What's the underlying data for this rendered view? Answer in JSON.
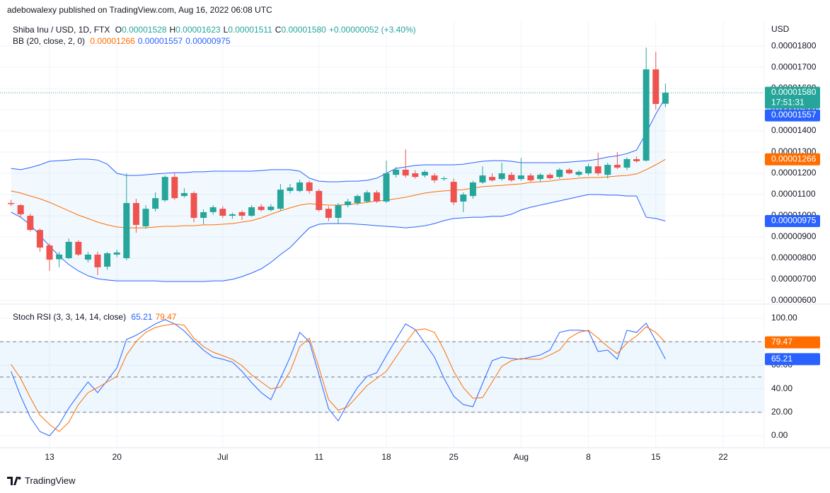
{
  "header": {
    "text": "adebowalexy published on TradingView.com, Aug 16, 2022 06:08 UTC"
  },
  "footer": {
    "logo": "TradingView"
  },
  "chart_data": [
    {
      "type": "candlestick",
      "title": "Shiba Inu / USD, 1D, FTX",
      "ohlc_legend": [
        {
          "key": "O",
          "value": "0.00001528"
        },
        {
          "key": "H",
          "value": "0.00001623"
        },
        {
          "key": "L",
          "value": "0.00001511"
        },
        {
          "key": "C",
          "value": "0.00001580"
        }
      ],
      "change": "+0.00000052 (+3.40%)",
      "currency": "USD",
      "countdown": "17:51:31",
      "up_color": "#26a69a",
      "down_color": "#ef5350",
      "x": [
        "Jun 9",
        "Jun 10",
        "Jun 11",
        "Jun 12",
        "Jun 13",
        "Jun 14",
        "Jun 15",
        "Jun 16",
        "Jun 17",
        "Jun 18",
        "Jun 19",
        "Jun 20",
        "Jun 21",
        "Jun 22",
        "Jun 23",
        "Jun 24",
        "Jun 25",
        "Jun 26",
        "Jun 27",
        "Jun 28",
        "Jun 29",
        "Jun 30",
        "Jul 1",
        "Jul 2",
        "Jul 3",
        "Jul 4",
        "Jul 5",
        "Jul 6",
        "Jul 7",
        "Jul 8",
        "Jul 9",
        "Jul 10",
        "Jul 11",
        "Jul 12",
        "Jul 13",
        "Jul 14",
        "Jul 15",
        "Jul 16",
        "Jul 17",
        "Jul 18",
        "Jul 19",
        "Jul 20",
        "Jul 21",
        "Jul 22",
        "Jul 23",
        "Jul 24",
        "Jul 25",
        "Jul 26",
        "Jul 27",
        "Jul 28",
        "Jul 29",
        "Jul 30",
        "Jul 31",
        "Aug 1",
        "Aug 2",
        "Aug 3",
        "Aug 4",
        "Aug 5",
        "Aug 6",
        "Aug 7",
        "Aug 8",
        "Aug 9",
        "Aug 10",
        "Aug 11",
        "Aug 12",
        "Aug 13",
        "Aug 14",
        "Aug 15",
        "Aug 16"
      ],
      "open": [
        1.06e-05,
        1.05e-05,
        1e-05,
        9.33e-06,
        8.6e-06,
        7.95e-06,
        8e-06,
        8.77e-06,
        7.93e-06,
        8.17e-06,
        7.6e-06,
        8.17e-06,
        8e-06,
        1.06e-05,
        9.5e-06,
        1.033e-05,
        1.073e-05,
        1.183e-05,
        1.093e-05,
        1.107e-05,
        9.9e-06,
        1.017e-05,
        1.033e-05,
        1e-05,
        1.017e-05,
        1e-05,
        1.043e-05,
        1.027e-05,
        1.033e-05,
        1.117e-05,
        1.117e-05,
        1.157e-05,
        1.117e-05,
        1.033e-05,
        9.9e-06,
        1.05e-05,
        1.06e-05,
        1.067e-05,
        1.11e-05,
        1.067e-05,
        1.193e-05,
        1.217e-05,
        1.2e-05,
        1.19e-05,
        1.19e-05,
        1.173e-05,
        1.16e-05,
        1.067e-05,
        1.093e-05,
        1.157e-05,
        1.183e-05,
        1.173e-05,
        1.193e-05,
        1.173e-05,
        1.19e-05,
        1.173e-05,
        1.193e-05,
        1.183e-05,
        1.217e-05,
        1.193e-05,
        1.2e-05,
        1.233e-05,
        1.193e-05,
        1.24e-05,
        1.227e-05,
        1.267e-05,
        1.26e-05,
        1.69e-05,
        1.528e-05
      ],
      "high": [
        1.075e-05,
        1.055e-05,
        1.01e-05,
        9.4e-06,
        8.7e-06,
        8.3e-06,
        8.93e-06,
        8.85e-06,
        8.3e-06,
        8.3e-06,
        8.3e-06,
        8.4e-06,
        1.2e-05,
        1.08e-05,
        1.05e-05,
        1.11e-05,
        1.19e-05,
        1.2e-05,
        1.13e-05,
        1.115e-05,
        1.03e-05,
        1.05e-05,
        1.045e-05,
        1.015e-05,
        1.025e-05,
        1.05e-05,
        1.055e-05,
        1.055e-05,
        1.15e-05,
        1.15e-05,
        1.17e-05,
        1.165e-05,
        1.125e-05,
        1.045e-05,
        1.06e-05,
        1.08e-05,
        1.1e-05,
        1.12e-05,
        1.12e-05,
        1.26e-05,
        1.23e-05,
        1.313e-05,
        1.215e-05,
        1.215e-05,
        1.2e-05,
        1.185e-05,
        1.175e-05,
        1.11e-05,
        1.165e-05,
        1.233e-05,
        1.2e-05,
        1.25e-05,
        1.205e-05,
        1.273e-05,
        1.2e-05,
        1.2e-05,
        1.2e-05,
        1.225e-05,
        1.225e-05,
        1.215e-05,
        1.245e-05,
        1.297e-05,
        1.25e-05,
        1.3e-05,
        1.275e-05,
        1.28e-05,
        1.793e-05,
        1.773e-05,
        1.623e-05
      ],
      "low": [
        1.045e-05,
        9.9e-06,
        9.25e-06,
        8.3e-06,
        7.4e-06,
        7.57e-06,
        7.95e-06,
        8.1e-06,
        7.8e-06,
        7.2e-06,
        7.45e-06,
        8.05e-06,
        7.9e-06,
        9.2e-06,
        9.4e-06,
        1.02e-05,
        1.065e-05,
        1.075e-05,
        1.085e-05,
        9.7e-06,
        9.6e-06,
        1.005e-05,
        9.9e-06,
        9.85e-06,
        9.8e-06,
        9.95e-06,
        1.02e-05,
        1.02e-05,
        1.025e-05,
        1.105e-05,
        1.11e-05,
        1.105e-05,
        1.02e-05,
        9.75e-06,
        9.6e-06,
        1.04e-05,
        1.05e-05,
        1.06e-05,
        1.06e-05,
        1.06e-05,
        1.18e-05,
        1.18e-05,
        1.175e-05,
        1.18e-05,
        1.155e-05,
        1.165e-05,
        1.05e-05,
        1.017e-05,
        1.08e-05,
        1.15e-05,
        1.16e-05,
        1.165e-05,
        1.16e-05,
        1.165e-05,
        1.16e-05,
        1.16e-05,
        1.17e-05,
        1.175e-05,
        1.195e-05,
        1.185e-05,
        1.19e-05,
        1.19e-05,
        1.175e-05,
        1.22e-05,
        1.215e-05,
        1.25e-05,
        1.255e-05,
        1.5e-05,
        1.511e-05
      ],
      "close": [
        1.055e-05,
        1.007e-05,
        9.33e-06,
        8.5e-06,
        7.93e-06,
        8.17e-06,
        8.77e-06,
        8.17e-06,
        8.17e-06,
        7.57e-06,
        8.23e-06,
        8.27e-06,
        1.06e-05,
        9.57e-06,
        1.033e-05,
        1.083e-05,
        1.183e-05,
        1.083e-05,
        1.107e-05,
        9.9e-06,
        1.017e-05,
        1.04e-05,
        1e-05,
        1.007e-05,
        1e-05,
        1.04e-05,
        1.027e-05,
        1.043e-05,
        1.123e-05,
        1.133e-05,
        1.157e-05,
        1.117e-05,
        1.027e-05,
        9.9e-06,
        1.05e-05,
        1.067e-05,
        1.093e-05,
        1.11e-05,
        1.067e-05,
        1.2e-05,
        1.217e-05,
        1.19e-05,
        1.183e-05,
        1.207e-05,
        1.167e-05,
        1.177e-05,
        1.063e-05,
        1.1e-05,
        1.157e-05,
        1.19e-05,
        1.167e-05,
        1.2e-05,
        1.167e-05,
        1.19e-05,
        1.167e-05,
        1.193e-05,
        1.177e-05,
        1.217e-05,
        1.2e-05,
        1.207e-05,
        1.233e-05,
        1.2e-05,
        1.24e-05,
        1.227e-05,
        1.267e-05,
        1.257e-05,
        1.69e-05,
        1.527e-05,
        1.58e-05
      ],
      "bb": {
        "label": "BB (20, close, 2, 0)",
        "fill": "rgba(33,150,243,0.06)",
        "series": [
          {
            "color": "#ff6d00",
            "last_label": "0.00001266",
            "values": [
              1.117e-05,
              1.107e-05,
              1.093e-05,
              1.08e-05,
              1.063e-05,
              1.043e-05,
              1.023e-05,
              1.003e-05,
              9.87e-06,
              9.7e-06,
              9.57e-06,
              9.47e-06,
              9.43e-06,
              9.43e-06,
              9.43e-06,
              9.47e-06,
              9.5e-06,
              9.5e-06,
              9.53e-06,
              9.53e-06,
              9.57e-06,
              9.57e-06,
              9.6e-06,
              9.63e-06,
              9.7e-06,
              9.77e-06,
              9.9e-06,
              1.007e-05,
              1.023e-05,
              1.037e-05,
              1.05e-05,
              1.057e-05,
              1.053e-05,
              1.05e-05,
              1.05e-05,
              1.053e-05,
              1.057e-05,
              1.063e-05,
              1.07e-05,
              1.073e-05,
              1.08e-05,
              1.087e-05,
              1.097e-05,
              1.107e-05,
              1.113e-05,
              1.117e-05,
              1.12e-05,
              1.123e-05,
              1.13e-05,
              1.137e-05,
              1.14e-05,
              1.143e-05,
              1.147e-05,
              1.15e-05,
              1.157e-05,
              1.16e-05,
              1.163e-05,
              1.17e-05,
              1.173e-05,
              1.177e-05,
              1.18e-05,
              1.18e-05,
              1.183e-05,
              1.187e-05,
              1.19e-05,
              1.197e-05,
              1.217e-05,
              1.24e-05,
              1.266e-05
            ]
          },
          {
            "color": "#2962ff",
            "last_label": "0.00001557",
            "values": [
              1.223e-05,
              1.217e-05,
              1.227e-05,
              1.24e-05,
              1.257e-05,
              1.26e-05,
              1.263e-05,
              1.267e-05,
              1.267e-05,
              1.263e-05,
              1.243e-05,
              1.2e-05,
              1.19e-05,
              1.19e-05,
              1.193e-05,
              1.197e-05,
              1.2e-05,
              1.203e-05,
              1.203e-05,
              1.207e-05,
              1.207e-05,
              1.21e-05,
              1.21e-05,
              1.21e-05,
              1.21e-05,
              1.21e-05,
              1.213e-05,
              1.217e-05,
              1.217e-05,
              1.217e-05,
              1.21e-05,
              1.177e-05,
              1.163e-05,
              1.16e-05,
              1.16e-05,
              1.163e-05,
              1.163e-05,
              1.167e-05,
              1.177e-05,
              1.2e-05,
              1.223e-05,
              1.23e-05,
              1.237e-05,
              1.24e-05,
              1.24e-05,
              1.24e-05,
              1.24e-05,
              1.243e-05,
              1.25e-05,
              1.257e-05,
              1.26e-05,
              1.26e-05,
              1.257e-05,
              1.25e-05,
              1.25e-05,
              1.25e-05,
              1.25e-05,
              1.25e-05,
              1.253e-05,
              1.257e-05,
              1.26e-05,
              1.267e-05,
              1.277e-05,
              1.283e-05,
              1.293e-05,
              1.31e-05,
              1.39e-05,
              1.48e-05,
              1.557e-05
            ]
          },
          {
            "color": "#2962ff",
            "last_label": "0.00000975",
            "values": [
              1.017e-05,
              9.93e-06,
              9.57e-06,
              9.07e-06,
              8.57e-06,
              8.1e-06,
              7.7e-06,
              7.4e-06,
              7.17e-06,
              7.03e-06,
              6.97e-06,
              6.93e-06,
              6.93e-06,
              6.93e-06,
              6.93e-06,
              6.93e-06,
              6.9e-06,
              6.9e-06,
              6.9e-06,
              6.9e-06,
              6.9e-06,
              6.93e-06,
              6.93e-06,
              7e-06,
              7.13e-06,
              7.3e-06,
              7.5e-06,
              7.8e-06,
              8.17e-06,
              8.5e-06,
              8.97e-06,
              9.43e-06,
              9.6e-06,
              9.63e-06,
              9.63e-06,
              9.63e-06,
              9.6e-06,
              9.57e-06,
              9.53e-06,
              9.5e-06,
              9.47e-06,
              9.43e-06,
              9.47e-06,
              9.53e-06,
              9.63e-06,
              9.77e-06,
              9.87e-06,
              9.9e-06,
              9.93e-06,
              9.93e-06,
              9.97e-06,
              9.97e-06,
              1.007e-05,
              1.027e-05,
              1.04e-05,
              1.05e-05,
              1.06e-05,
              1.07e-05,
              1.08e-05,
              1.09e-05,
              1.1e-05,
              1.1e-05,
              1.097e-05,
              1.097e-05,
              1.093e-05,
              1.093e-05,
              9.93e-06,
              9.87e-06,
              9.75e-06
            ]
          }
        ]
      },
      "ylim": [
        5.9e-06,
        1.917e-05
      ],
      "yticks": [
        {
          "value": 6e-06,
          "label": "0.00000600"
        },
        {
          "value": 7e-06,
          "label": "0.00000700"
        },
        {
          "value": 8e-06,
          "label": "0.00000800"
        },
        {
          "value": 9e-06,
          "label": "0.00000900"
        },
        {
          "value": 1e-05,
          "label": "0.00001000"
        },
        {
          "value": 1.1e-05,
          "label": "0.00001100"
        },
        {
          "value": 1.2e-05,
          "label": "0.00001200"
        },
        {
          "value": 1.3e-05,
          "label": "0.00001300"
        },
        {
          "value": 1.4e-05,
          "label": "0.00001400"
        },
        {
          "value": 1.5e-05,
          "label": "0.00001500"
        },
        {
          "value": 1.6e-05,
          "label": "0.00001600"
        },
        {
          "value": 1.7e-05,
          "label": "0.00001700"
        },
        {
          "value": 1.8e-05,
          "label": "0.00001800"
        }
      ],
      "xticks": [
        {
          "value": "Jun 13",
          "label": "13"
        },
        {
          "value": "Jun 20",
          "label": "20"
        },
        {
          "value": "Jul 1",
          "label": "Jul"
        },
        {
          "value": "Jul 11",
          "label": "11"
        },
        {
          "value": "Jul 18",
          "label": "18"
        },
        {
          "value": "Jul 25",
          "label": "25"
        },
        {
          "value": "Aug 1",
          "label": "Aug"
        },
        {
          "value": "Aug 8",
          "label": "8"
        },
        {
          "value": "Aug 15",
          "label": "15"
        },
        {
          "value": "Aug 22",
          "label": "22"
        }
      ],
      "grid": true
    },
    {
      "type": "line",
      "title": "Stoch RSI (3, 3, 14, 14, close)",
      "series": [
        {
          "color": "#2962ff",
          "values": [
            54.8,
            33.7,
            15.7,
            3.6,
            0,
            9.6,
            23.5,
            34.9,
            45.8,
            36.7,
            47.0,
            57.8,
            81.9,
            85.5,
            90.4,
            95.2,
            98.8,
            95.2,
            89.2,
            80.7,
            72.9,
            66.9,
            65.1,
            62.7,
            54.8,
            45.2,
            36.7,
            30.7,
            48.8,
            66.9,
            88.0,
            80.1,
            51.8,
            22.9,
            12.7,
            27.7,
            41.0,
            50.6,
            53.6,
            68.1,
            81.9,
            95.2,
            90.4,
            78.9,
            66.9,
            48.8,
            33.7,
            26.5,
            24.7,
            44.6,
            63.9,
            66.9,
            65.7,
            65.1,
            66.9,
            68.7,
            72.9,
            88.0,
            89.8,
            89.8,
            89.2,
            71.7,
            72.9,
            65.1,
            89.8,
            88.0,
            95.8,
            80.7,
            65.21
          ]
        },
        {
          "color": "#ff6d00",
          "values": [
            60.8,
            48.8,
            32.5,
            17.5,
            9.6,
            3.6,
            11.4,
            26.5,
            36.7,
            41.0,
            45.8,
            50.6,
            68.7,
            80.1,
            88.0,
            92.2,
            94.0,
            95.2,
            94.0,
            83.1,
            75.9,
            71.1,
            68.1,
            65.1,
            59.6,
            51.8,
            45.8,
            39.8,
            41.6,
            54.8,
            75.9,
            83.1,
            57.8,
            30.7,
            21.7,
            24.7,
            33.7,
            42.8,
            48.8,
            54.8,
            66.9,
            78.9,
            89.8,
            91.0,
            88.0,
            72.9,
            54.8,
            41.0,
            31.9,
            32.5,
            45.8,
            59.0,
            63.9,
            65.7,
            65.1,
            65.1,
            68.7,
            72.9,
            83.1,
            88.0,
            89.8,
            83.1,
            75.9,
            69.9,
            78.9,
            84.9,
            92.8,
            88.0,
            79.47
          ]
        }
      ],
      "levels": [
        80,
        50,
        20
      ],
      "band_fill": "rgba(33,150,243,0.08)",
      "ylim": [
        -9.6,
        110.8
      ],
      "yticks": [
        {
          "value": 0,
          "label": "0.00"
        },
        {
          "value": 20,
          "label": "20.00"
        },
        {
          "value": 40,
          "label": "40.00"
        },
        {
          "value": 60,
          "label": "60.00"
        },
        {
          "value": 80,
          "label": "80.00"
        },
        {
          "value": 100,
          "label": "100.00"
        }
      ],
      "grid": true
    }
  ]
}
